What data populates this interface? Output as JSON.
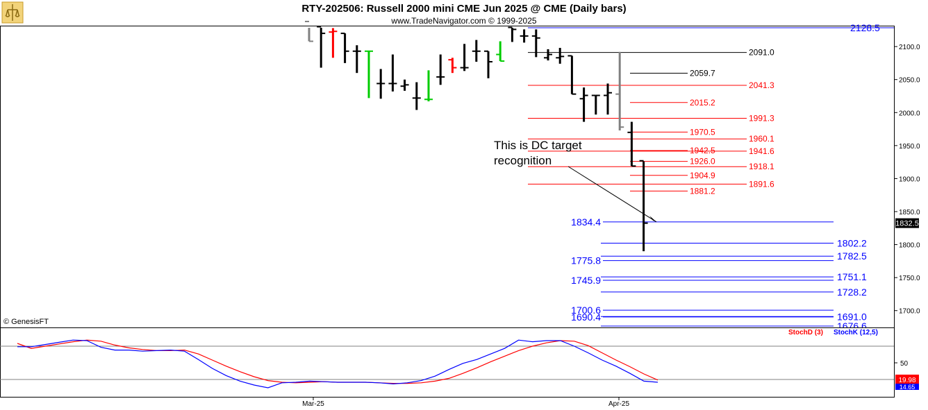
{
  "header": {
    "title": "RTY-202506:  Russell 2000 mini CME Jun 2025 @ CME  (Daily bars)",
    "subtitle": "www.TradeNavigator.com © 1999-2025",
    "watermark": "© GenesisFT"
  },
  "colors": {
    "bar": "#000000",
    "bar_gray": "#808080",
    "bar_red": "#ff0000",
    "bar_green": "#00cc00",
    "resistance": "#ff0000",
    "support": "#0000ff",
    "pivot": "#000000",
    "stoch_d": "#ff0000",
    "stoch_k": "#0000ff"
  },
  "chart_data": [
    {
      "type": "bar",
      "subtype": "ohlc",
      "ylim": [
        1678,
        2138
      ],
      "y_ticks": [
        1700,
        1750,
        1800,
        1850,
        1900,
        1950,
        2000,
        2050,
        2100
      ],
      "y_tick_labels": [
        "1700.0",
        "1750.0",
        "1800.0",
        "1850.0",
        "1900.0",
        "1950.0",
        "2000.0",
        "2050.0",
        "2100.0"
      ],
      "x_tick_labels": [
        "Mar-25",
        "Apr-25"
      ],
      "last_price_label": "1832.5",
      "bars": [
        {
          "o": 2138,
          "h": 2138,
          "l": 2108,
          "c": 2108,
          "color": "gray"
        },
        {
          "o": 2130,
          "h": 2130,
          "l": 2068,
          "c": 2120,
          "color": "black"
        },
        {
          "o": 2122,
          "h": 2128,
          "l": 2083,
          "c": 2123,
          "color": "red"
        },
        {
          "o": 2120,
          "h": 2120,
          "l": 2075,
          "c": 2093,
          "color": "black"
        },
        {
          "o": 2093,
          "h": 2102,
          "l": 2060,
          "c": 2093,
          "color": "black"
        },
        {
          "o": 2093,
          "h": 2093,
          "l": 2022,
          "c": 2093,
          "color": "green"
        },
        {
          "o": 2044,
          "h": 2066,
          "l": 2021,
          "c": 2044,
          "color": "black"
        },
        {
          "o": 2044,
          "h": 2088,
          "l": 2032,
          "c": 2044,
          "color": "black"
        },
        {
          "o": 2040,
          "h": 2050,
          "l": 2033,
          "c": 2042,
          "color": "black"
        },
        {
          "o": 2022,
          "h": 2046,
          "l": 2004,
          "c": 2022,
          "color": "black"
        },
        {
          "o": 2020,
          "h": 2064,
          "l": 2017,
          "c": 2020,
          "color": "green"
        },
        {
          "o": 2054,
          "h": 2088,
          "l": 2042,
          "c": 2054,
          "color": "black"
        },
        {
          "o": 2080,
          "h": 2083,
          "l": 2060,
          "c": 2068,
          "color": "red"
        },
        {
          "o": 2068,
          "h": 2104,
          "l": 2063,
          "c": 2068,
          "color": "black"
        },
        {
          "o": 2093,
          "h": 2110,
          "l": 2077,
          "c": 2093,
          "color": "black"
        },
        {
          "o": 2093,
          "h": 2093,
          "l": 2052,
          "c": 2077,
          "color": "black"
        },
        {
          "o": 2088,
          "h": 2108,
          "l": 2078,
          "c": 2078,
          "color": "green"
        },
        {
          "o": 2129,
          "h": 2138,
          "l": 2107,
          "c": 2126,
          "color": "black"
        },
        {
          "o": 2116,
          "h": 2126,
          "l": 2106,
          "c": 2116,
          "color": "black"
        },
        {
          "o": 2116,
          "h": 2126,
          "l": 2084,
          "c": 2113,
          "color": "black"
        },
        {
          "o": 2083,
          "h": 2096,
          "l": 2079,
          "c": 2088,
          "color": "black"
        },
        {
          "o": 2083,
          "h": 2098,
          "l": 2074,
          "c": 2085,
          "color": "black"
        },
        {
          "o": 2086,
          "h": 2086,
          "l": 2028,
          "c": 2028,
          "color": "black"
        },
        {
          "o": 2021,
          "h": 2038,
          "l": 1986,
          "c": 2026,
          "color": "black"
        },
        {
          "o": 2026,
          "h": 2026,
          "l": 1997,
          "c": 2026,
          "color": "black"
        },
        {
          "o": 2026,
          "h": 2044,
          "l": 1997,
          "c": 2030,
          "color": "black"
        },
        {
          "o": 2028,
          "h": 2092,
          "l": 1973,
          "c": 1978,
          "color": "gray"
        },
        {
          "o": 1970,
          "h": 1986,
          "l": 1919,
          "c": 1919,
          "color": "black"
        },
        {
          "o": 1927,
          "h": 1926,
          "l": 1790,
          "c": 1832.5,
          "color": "black"
        }
      ],
      "levels": [
        {
          "value": "2128.5",
          "price": 2128.5,
          "color": "support",
          "side": "right"
        },
        {
          "value": "2091.0",
          "price": 2091,
          "color": "pivot",
          "side": "right"
        },
        {
          "value": "2059.7",
          "price": 2059.7,
          "color": "pivot",
          "side": "mid"
        },
        {
          "value": "2041.3",
          "price": 2041.3,
          "color": "resistance",
          "side": "right"
        },
        {
          "value": "2015.2",
          "price": 2015.2,
          "color": "resistance",
          "side": "mid"
        },
        {
          "value": "1991.3",
          "price": 1991.3,
          "color": "resistance",
          "side": "right"
        },
        {
          "value": "1970.5",
          "price": 1970.5,
          "color": "resistance",
          "side": "mid"
        },
        {
          "value": "1960.1",
          "price": 1960.1,
          "color": "resistance",
          "side": "right"
        },
        {
          "value": "1942.5",
          "price": 1942.5,
          "color": "resistance",
          "side": "mid"
        },
        {
          "value": "1941.6",
          "price": 1941.6,
          "color": "resistance",
          "side": "right"
        },
        {
          "value": "1926.0",
          "price": 1926,
          "color": "resistance",
          "side": "mid"
        },
        {
          "value": "1918.1",
          "price": 1918.1,
          "color": "resistance",
          "side": "right"
        },
        {
          "value": "1904.9",
          "price": 1904.9,
          "color": "resistance",
          "side": "mid"
        },
        {
          "value": "1891.6",
          "price": 1891.6,
          "color": "resistance",
          "side": "right"
        },
        {
          "value": "1881.2",
          "price": 1881.2,
          "color": "resistance",
          "side": "mid"
        },
        {
          "value": "1834.4",
          "price": 1834.4,
          "color": "support",
          "side": "left"
        },
        {
          "value": "1802.2",
          "price": 1802.2,
          "color": "support",
          "side": "right"
        },
        {
          "value": "1782.5",
          "price": 1782.5,
          "color": "support",
          "side": "right"
        },
        {
          "value": "1775.8",
          "price": 1775.8,
          "color": "support",
          "side": "left"
        },
        {
          "value": "1751.1",
          "price": 1751.1,
          "color": "support",
          "side": "right"
        },
        {
          "value": "1745.9",
          "price": 1745.9,
          "color": "support",
          "side": "left"
        },
        {
          "value": "1728.2",
          "price": 1728.2,
          "color": "support",
          "side": "right"
        },
        {
          "value": "1700.6",
          "price": 1700.6,
          "color": "support",
          "side": "left"
        },
        {
          "value": "1691.0",
          "price": 1691,
          "color": "support",
          "side": "right"
        },
        {
          "value": "1690.4",
          "price": 1690.4,
          "color": "support",
          "side": "left"
        },
        {
          "value": "1676.6",
          "price": 1676.6,
          "color": "support",
          "side": "right"
        }
      ],
      "annotation": {
        "text_line1": "This is DC target",
        "text_line2": "recognition",
        "points_to_price": 1834.4
      }
    },
    {
      "type": "line",
      "ylim": [
        0,
        100
      ],
      "y_ticks": [
        50
      ],
      "y_tick_labels": [
        "50"
      ],
      "reference_lines": [
        80,
        20
      ],
      "series": [
        {
          "name": "StochD (3)",
          "color": "#ff0000",
          "last_label": "19.98",
          "values": [
            85,
            76,
            80,
            84,
            88,
            91,
            89,
            82,
            77,
            74,
            72,
            72,
            73,
            66,
            55,
            44,
            34,
            25,
            18,
            15,
            14,
            15,
            16,
            15,
            15,
            15,
            14,
            13,
            13,
            14,
            17,
            22,
            31,
            41,
            52,
            62,
            72,
            80,
            86,
            90,
            89,
            81,
            68,
            55,
            43,
            30,
            19
          ]
        },
        {
          "name": "StochK (12,5)",
          "color": "#0000ff",
          "last_label": "14.65",
          "values": [
            79,
            79,
            83,
            87,
            91,
            90,
            78,
            73,
            73,
            71,
            72,
            73,
            71,
            56,
            40,
            27,
            17,
            10,
            5,
            14,
            15,
            17,
            16,
            15,
            15,
            15,
            14,
            12,
            14,
            18,
            26,
            38,
            49,
            56,
            66,
            76,
            91,
            88,
            90,
            90,
            80,
            68,
            55,
            44,
            31,
            17,
            15
          ]
        }
      ]
    }
  ]
}
